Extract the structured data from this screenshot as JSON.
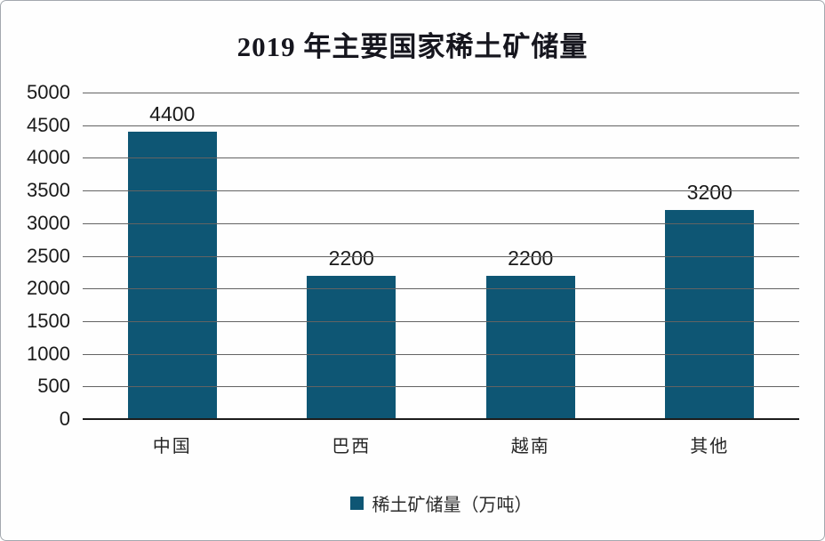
{
  "window": {
    "background": "#fefefe",
    "border_color": "#a3a8ae"
  },
  "chart_data": {
    "type": "bar",
    "title": "2019 年主要国家稀土矿储量",
    "categories": [
      "中国",
      "巴西",
      "越南",
      "其他"
    ],
    "values": [
      4400,
      2200,
      2200,
      3200
    ],
    "series": [
      {
        "name": "稀土矿储量（万吨）",
        "values": [
          4400,
          2200,
          2200,
          3200
        ]
      }
    ],
    "data_labels": [
      "4400",
      "2200",
      "2200",
      "3200"
    ],
    "xlabel": "",
    "ylabel": "",
    "ylim": [
      0,
      5000
    ],
    "yticks": [
      0,
      500,
      1000,
      1500,
      2000,
      2500,
      3000,
      3500,
      4000,
      4500,
      5000
    ],
    "grid": true,
    "gridline_color": "#636363",
    "baseline_color": "#1c1c1c",
    "bar_color": "#0e5674",
    "legend_position": "bottom"
  },
  "legend": {
    "marker_color": "#0e5674",
    "label": "稀土矿储量（万吨）"
  }
}
